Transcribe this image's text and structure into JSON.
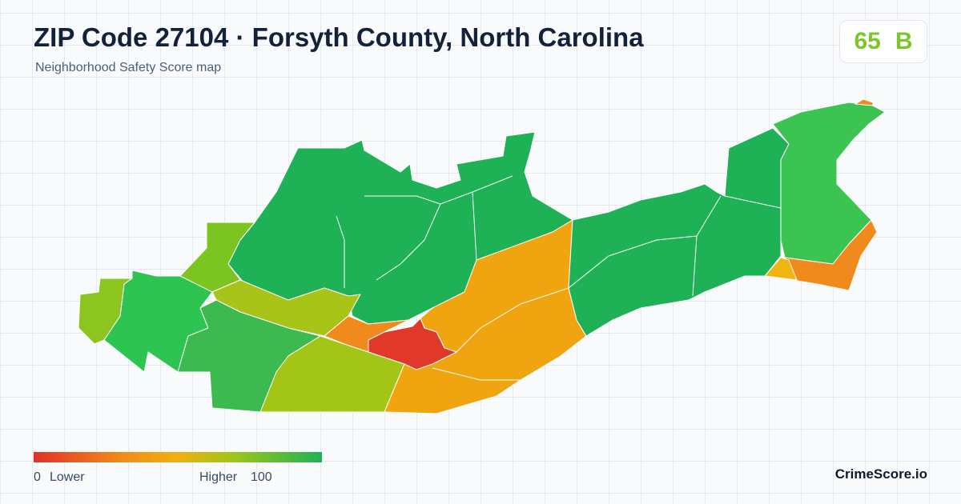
{
  "header": {
    "title": "ZIP Code 27104 · Forsyth County, North Carolina",
    "subtitle": "Neighborhood Safety Score map"
  },
  "score": {
    "value": 65,
    "grade": "B"
  },
  "legend": {
    "min": 0,
    "min_label": "Lower",
    "max_label": "Higher",
    "max": 100
  },
  "brand": "CrimeScore.io"
}
